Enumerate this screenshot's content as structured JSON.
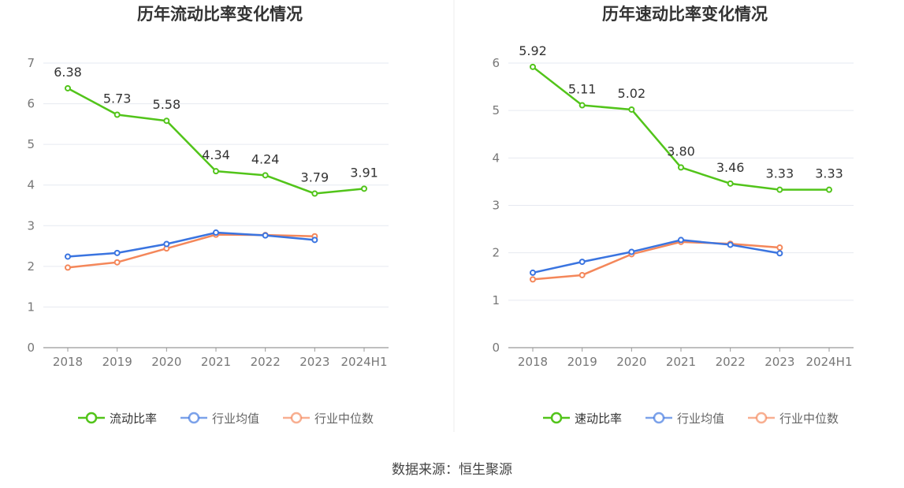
{
  "source_label": "数据来源：恒生聚源",
  "chart_data": [
    {
      "type": "line",
      "title": "历年流动比率变化情况",
      "categories": [
        "2018",
        "2019",
        "2020",
        "2021",
        "2022",
        "2023",
        "2024H1"
      ],
      "ylim": [
        0,
        7
      ],
      "yticks": [
        0,
        1,
        2,
        3,
        4,
        5,
        6,
        7
      ],
      "grid": true,
      "legend_position": "bottom",
      "series": [
        {
          "name": "流动比率",
          "color": "#52c41a",
          "values": [
            6.38,
            5.73,
            5.58,
            4.34,
            4.24,
            3.79,
            3.91
          ],
          "labels": [
            "6.38",
            "5.73",
            "5.58",
            "4.34",
            "4.24",
            "3.79",
            "3.91"
          ]
        },
        {
          "name": "行业均值",
          "color": "#3a74e0",
          "values": [
            2.24,
            2.33,
            2.55,
            2.83,
            2.76,
            2.65,
            null
          ]
        },
        {
          "name": "行业中位数",
          "color": "#f4875a",
          "values": [
            1.97,
            2.1,
            2.44,
            2.78,
            2.77,
            2.74,
            null
          ]
        }
      ]
    },
    {
      "type": "line",
      "title": "历年速动比率变化情况",
      "categories": [
        "2018",
        "2019",
        "2020",
        "2021",
        "2022",
        "2023",
        "2024H1"
      ],
      "ylim": [
        0,
        6
      ],
      "yticks": [
        0,
        1,
        2,
        3,
        4,
        5,
        6
      ],
      "grid": true,
      "legend_position": "bottom",
      "series": [
        {
          "name": "速动比率",
          "color": "#52c41a",
          "values": [
            5.92,
            5.11,
            5.02,
            3.8,
            3.46,
            3.33,
            3.33
          ],
          "labels": [
            "5.92",
            "5.11",
            "5.02",
            "3.80",
            "3.46",
            "3.33",
            "3.33"
          ]
        },
        {
          "name": "行业均值",
          "color": "#3a74e0",
          "values": [
            1.58,
            1.81,
            2.02,
            2.27,
            2.17,
            1.99,
            null
          ]
        },
        {
          "name": "行业中位数",
          "color": "#f4875a",
          "values": [
            1.44,
            1.53,
            1.97,
            2.23,
            2.19,
            2.11,
            null
          ]
        }
      ]
    }
  ]
}
